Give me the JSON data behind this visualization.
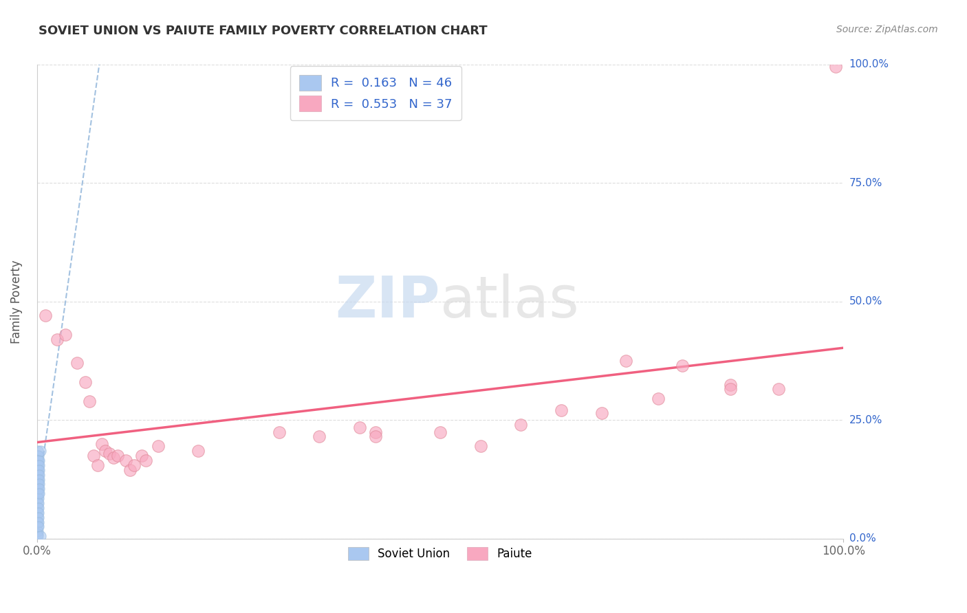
{
  "title": "SOVIET UNION VS PAIUTE FAMILY POVERTY CORRELATION CHART",
  "source": "Source: ZipAtlas.com",
  "ylabel": "Family Poverty",
  "legend_R": [
    "0.163",
    "0.553"
  ],
  "legend_N": [
    "46",
    "37"
  ],
  "watermark_zip": "ZIP",
  "watermark_atlas": "atlas",
  "background_color": "#ffffff",
  "grid_color": "#dddddd",
  "soviet_color": "#aac8f0",
  "paiute_color": "#f8a8c0",
  "soviet_trendline_color": "#99bbdd",
  "paiute_trendline_color": "#f06080",
  "soviet_points": [
    [
      0.001,
      0.185
    ],
    [
      0.001,
      0.175
    ],
    [
      0.001,
      0.165
    ],
    [
      0.001,
      0.155
    ],
    [
      0.001,
      0.145
    ],
    [
      0.001,
      0.135
    ],
    [
      0.001,
      0.125
    ],
    [
      0.001,
      0.115
    ],
    [
      0.001,
      0.105
    ],
    [
      0.001,
      0.095
    ],
    [
      0.001,
      0.085
    ],
    [
      0.001,
      0.075
    ],
    [
      0.001,
      0.065
    ],
    [
      0.001,
      0.055
    ],
    [
      0.001,
      0.045
    ],
    [
      0.001,
      0.035
    ],
    [
      0.001,
      0.025
    ],
    [
      0.001,
      0.015
    ],
    [
      0.001,
      0.01
    ],
    [
      0.001,
      0.005
    ],
    [
      0.002,
      0.175
    ],
    [
      0.002,
      0.165
    ],
    [
      0.002,
      0.155
    ],
    [
      0.002,
      0.145
    ],
    [
      0.002,
      0.135
    ],
    [
      0.002,
      0.125
    ],
    [
      0.002,
      0.115
    ],
    [
      0.002,
      0.105
    ],
    [
      0.002,
      0.095
    ],
    [
      0.002,
      0.085
    ],
    [
      0.002,
      0.075
    ],
    [
      0.002,
      0.065
    ],
    [
      0.002,
      0.055
    ],
    [
      0.002,
      0.045
    ],
    [
      0.002,
      0.035
    ],
    [
      0.002,
      0.025
    ],
    [
      0.003,
      0.165
    ],
    [
      0.003,
      0.155
    ],
    [
      0.003,
      0.145
    ],
    [
      0.003,
      0.135
    ],
    [
      0.003,
      0.125
    ],
    [
      0.003,
      0.115
    ],
    [
      0.003,
      0.105
    ],
    [
      0.003,
      0.095
    ],
    [
      0.004,
      0.185
    ],
    [
      0.004,
      0.005
    ]
  ],
  "paiute_points": [
    [
      0.01,
      0.47
    ],
    [
      0.025,
      0.42
    ],
    [
      0.035,
      0.43
    ],
    [
      0.05,
      0.37
    ],
    [
      0.06,
      0.33
    ],
    [
      0.065,
      0.29
    ],
    [
      0.07,
      0.175
    ],
    [
      0.075,
      0.155
    ],
    [
      0.08,
      0.2
    ],
    [
      0.085,
      0.185
    ],
    [
      0.09,
      0.18
    ],
    [
      0.095,
      0.17
    ],
    [
      0.1,
      0.175
    ],
    [
      0.11,
      0.165
    ],
    [
      0.115,
      0.145
    ],
    [
      0.12,
      0.155
    ],
    [
      0.13,
      0.175
    ],
    [
      0.135,
      0.165
    ],
    [
      0.15,
      0.195
    ],
    [
      0.2,
      0.185
    ],
    [
      0.3,
      0.225
    ],
    [
      0.35,
      0.215
    ],
    [
      0.4,
      0.235
    ],
    [
      0.42,
      0.225
    ],
    [
      0.42,
      0.215
    ],
    [
      0.5,
      0.225
    ],
    [
      0.55,
      0.195
    ],
    [
      0.6,
      0.24
    ],
    [
      0.65,
      0.27
    ],
    [
      0.7,
      0.265
    ],
    [
      0.73,
      0.375
    ],
    [
      0.77,
      0.295
    ],
    [
      0.8,
      0.365
    ],
    [
      0.86,
      0.325
    ],
    [
      0.86,
      0.315
    ],
    [
      0.92,
      0.315
    ],
    [
      0.99,
      0.995
    ]
  ]
}
